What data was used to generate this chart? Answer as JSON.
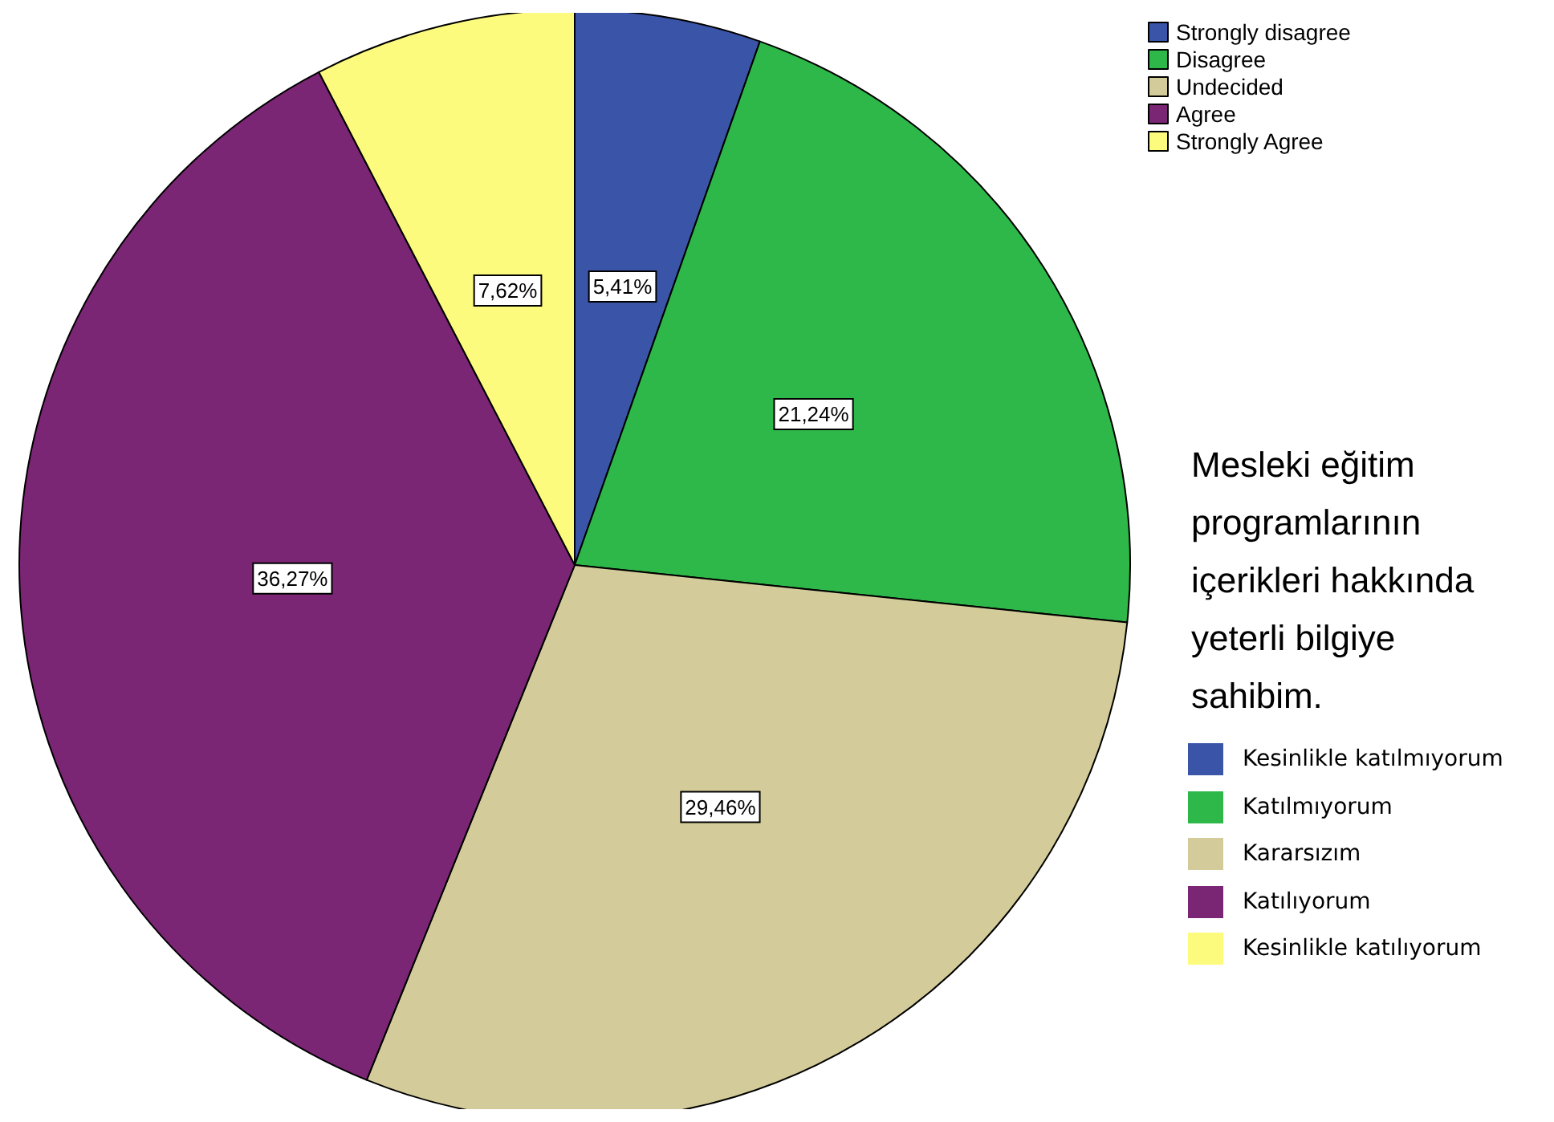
{
  "chart_data": {
    "type": "pie",
    "categories": [
      "Strongly disagree",
      "Disagree",
      "Undecided",
      "Agree",
      "Strongly Agree"
    ],
    "values": [
      5.41,
      21.24,
      29.46,
      36.27,
      7.62
    ],
    "colors": [
      "#3a55a8",
      "#2fb84a",
      "#d3cc9a",
      "#7b2575",
      "#fdfb7e"
    ],
    "value_labels": [
      "5,41%",
      "21,24%",
      "29,46%",
      "36,27%",
      "7,62%"
    ],
    "legend": "top right",
    "annotations": [
      "Mesleki eğitim\nprogramlarının\niçerikleri hakkında\nyeterli bilgiye\nsahibim.",
      "Kesinlikle katılmıyorum",
      "Katılmıyorum",
      "Kararsızım",
      "Katılıyorum",
      "Kesinlikle katılıyorum"
    ]
  }
}
